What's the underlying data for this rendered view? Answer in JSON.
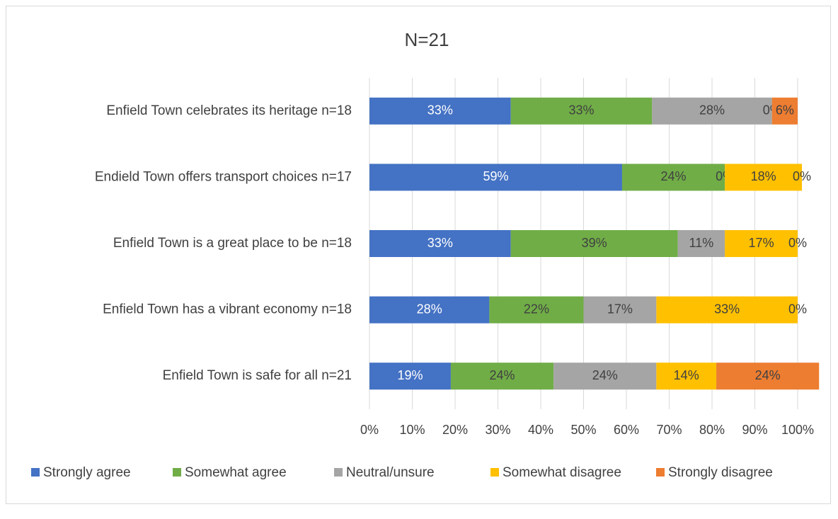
{
  "chart_data": {
    "type": "stacked_bar_horizontal",
    "title": "N=21",
    "categories": [
      "Enfield Town celebrates its heritage n=18",
      "Endield Town offers transport choices n=17",
      "Enfield Town is  a great place to be n=18",
      "Enfield Town has a vibrant economy n=18",
      "Enfield Town is safe for all n=21"
    ],
    "series": [
      {
        "name": "Strongly agree",
        "color": "#4472c4",
        "values": [
          33,
          59,
          33,
          28,
          19
        ],
        "value_labels": [
          "33%",
          "59%",
          "33%",
          "28%",
          "19%"
        ]
      },
      {
        "name": "Somewhat agree",
        "color": "#70ad47",
        "values": [
          33,
          24,
          39,
          22,
          24
        ],
        "value_labels": [
          "33%",
          "24%",
          "39%",
          "22%",
          "24%"
        ]
      },
      {
        "name": "Neutral/unsure",
        "color": "#a5a5a5",
        "values": [
          28,
          0,
          11,
          17,
          24
        ],
        "value_labels": [
          "28%",
          "0%",
          "11%",
          "17%",
          "24%"
        ]
      },
      {
        "name": "Somewhat disagree",
        "color": "#ffc000",
        "values": [
          0,
          18,
          17,
          33,
          14
        ],
        "value_labels": [
          "0%",
          "18%",
          "17%",
          "33%",
          "14%"
        ]
      },
      {
        "name": "Strongly disagree",
        "color": "#ed7d31",
        "values": [
          6,
          0,
          0,
          0,
          24
        ],
        "value_labels": [
          "6%",
          "0%",
          "0%",
          "0%",
          "24%"
        ]
      }
    ],
    "xlim": [
      0,
      100
    ],
    "xticks": [
      {
        "value": 0,
        "label": "0%"
      },
      {
        "value": 10,
        "label": "10%"
      },
      {
        "value": 20,
        "label": "20%"
      },
      {
        "value": 30,
        "label": "30%"
      },
      {
        "value": 40,
        "label": "40%"
      },
      {
        "value": 50,
        "label": "50%"
      },
      {
        "value": 60,
        "label": "60%"
      },
      {
        "value": 70,
        "label": "70%"
      },
      {
        "value": 80,
        "label": "80%"
      },
      {
        "value": 90,
        "label": "90%"
      },
      {
        "value": 100,
        "label": "100%"
      }
    ],
    "grid": true,
    "legend": "bottom"
  }
}
